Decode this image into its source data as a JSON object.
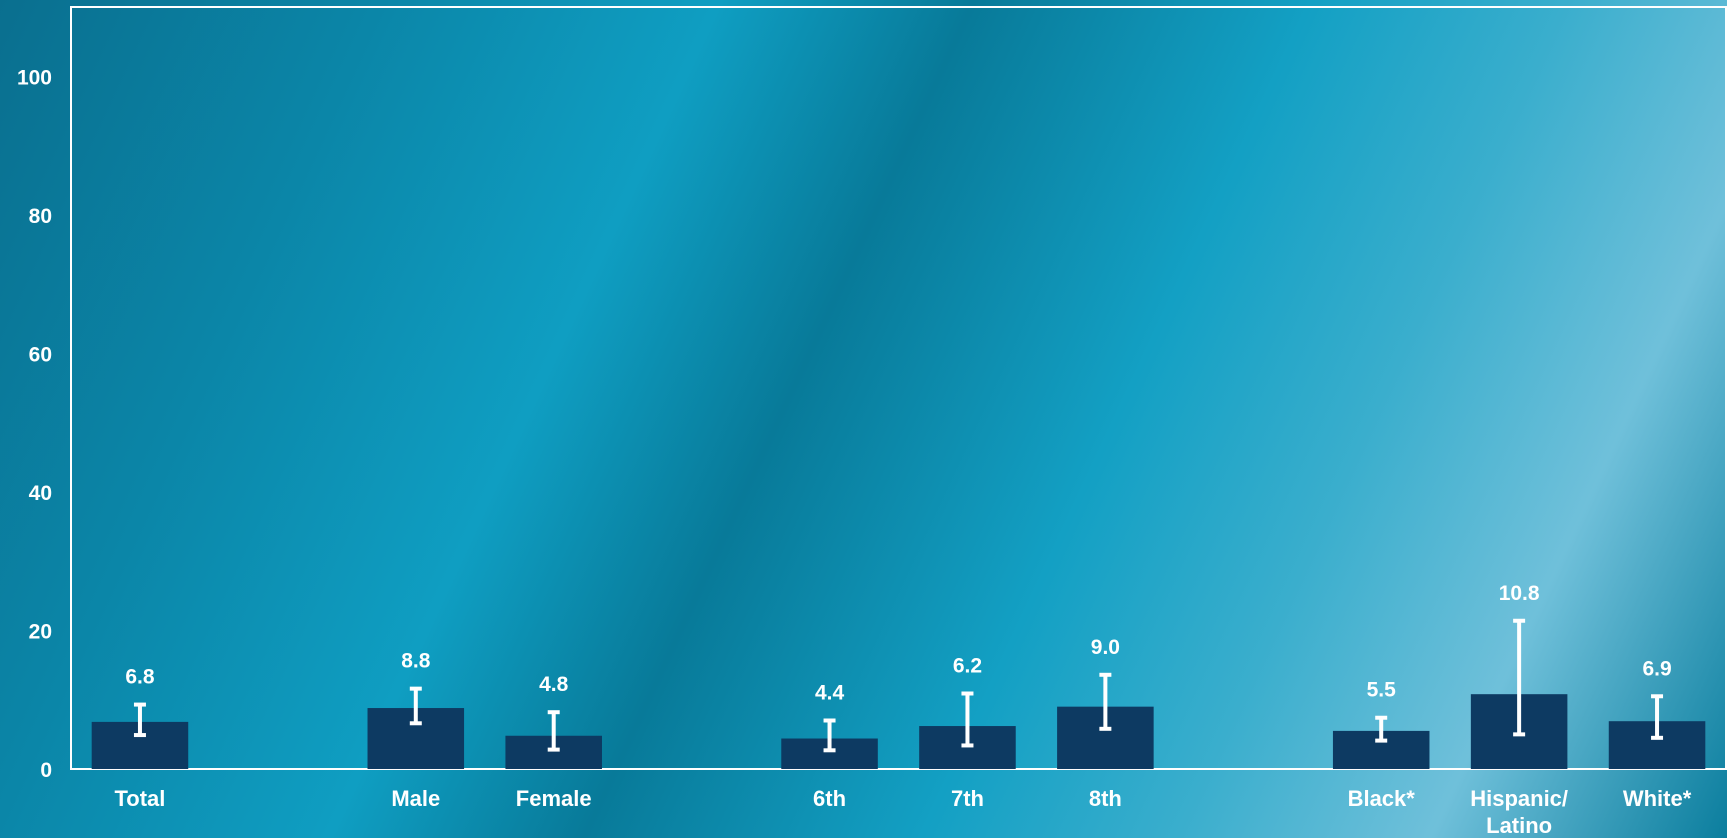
{
  "chart_data": {
    "type": "bar",
    "title": "",
    "xlabel": "",
    "ylabel": "",
    "ylim": [
      0,
      110
    ],
    "yticks": [
      0,
      20,
      40,
      60,
      80,
      100
    ],
    "grid": false,
    "bar_color": "#0d3a62",
    "text_color": "#ffffff",
    "axis_color": "#ffffff",
    "groups": [
      {
        "categories": [
          {
            "label": "Total",
            "value": 6.8,
            "value_label": "6.8",
            "ci": [
              4.9,
              9.3
            ]
          }
        ]
      },
      {
        "categories": [
          {
            "label": "Male",
            "value": 8.8,
            "value_label": "8.8",
            "ci": [
              6.6,
              11.6
            ]
          },
          {
            "label": "Female",
            "value": 4.8,
            "value_label": "4.8",
            "ci": [
              2.8,
              8.2
            ]
          }
        ]
      },
      {
        "categories": [
          {
            "label": "6th",
            "value": 4.4,
            "value_label": "4.4",
            "ci": [
              2.7,
              7.0
            ]
          },
          {
            "label": "7th",
            "value": 6.2,
            "value_label": "6.2",
            "ci": [
              3.4,
              10.9
            ]
          },
          {
            "label": "8th",
            "value": 9.0,
            "value_label": "9.0",
            "ci": [
              5.8,
              13.6
            ]
          }
        ]
      },
      {
        "categories": [
          {
            "label": "Black*",
            "value": 5.5,
            "value_label": "5.5",
            "ci": [
              4.1,
              7.4
            ]
          },
          {
            "label": "Hispanic/ Latino",
            "value": 10.8,
            "value_label": "10.8",
            "ci": [
              5.0,
              21.4
            ]
          },
          {
            "label": "White*",
            "value": 6.9,
            "value_label": "6.9",
            "ci": [
              4.5,
              10.5
            ]
          }
        ]
      }
    ]
  }
}
